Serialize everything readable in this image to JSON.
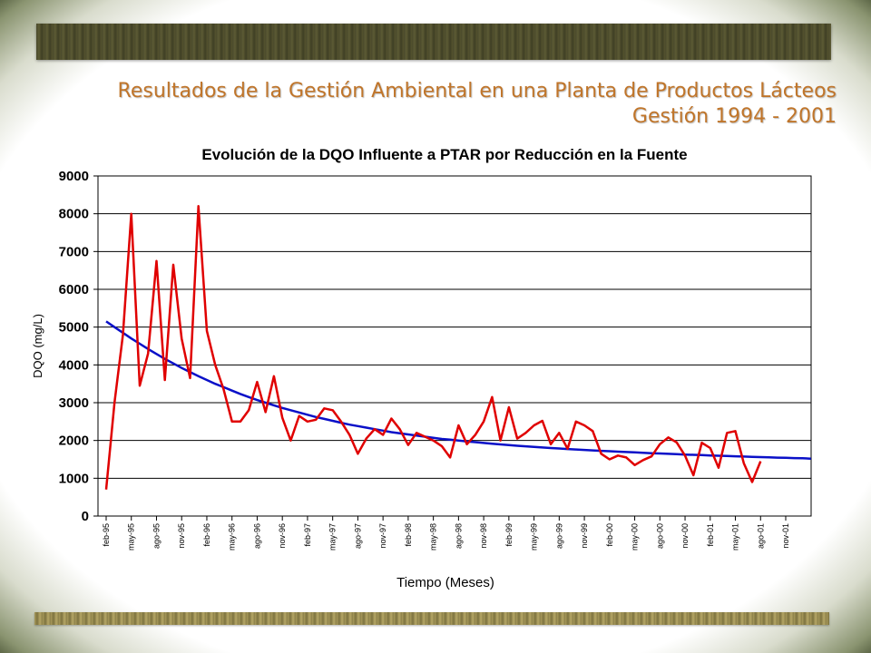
{
  "slide": {
    "header_line1": "Resultados de la Gestión Ambiental en una Planta de Productos Lácteos",
    "header_line2": "Gestión 1994 - 2001"
  },
  "colors": {
    "series": "#e00000",
    "trend": "#0a10c8",
    "header": "#c0752a"
  },
  "chart_data": {
    "type": "line",
    "title": "Evolución de la DQO Influente a PTAR por Reducción en la Fuente",
    "xlabel": "Tiempo (Meses)",
    "ylabel": "DQO (mg/L)",
    "ylim": [
      0,
      9000
    ],
    "yticks": [
      0,
      1000,
      2000,
      3000,
      4000,
      5000,
      6000,
      7000,
      8000,
      9000
    ],
    "grid": true,
    "xticks": [
      "feb-95",
      "may-95",
      "ago-95",
      "nov-95",
      "feb-96",
      "may-96",
      "ago-96",
      "nov-96",
      "feb-97",
      "may-97",
      "ago-97",
      "nov-97",
      "feb-98",
      "may-98",
      "ago-98",
      "nov-98",
      "feb-99",
      "may-99",
      "ago-99",
      "nov-99",
      "feb-00",
      "may-00",
      "ago-00",
      "nov-00",
      "feb-01",
      "may-01",
      "ago-01",
      "nov-01"
    ],
    "x_start": "feb-95",
    "series": [
      {
        "type": "line",
        "values": [
          700,
          3000,
          4800,
          8000,
          3450,
          4300,
          6750,
          3600,
          6650,
          4700,
          3650,
          8200,
          4900,
          4000,
          3350,
          2500,
          2500,
          2800,
          3550,
          2750,
          3700,
          2600,
          2000,
          2650,
          2500,
          2550,
          2850,
          2800,
          2500,
          2150,
          1650,
          2050,
          2300,
          2150,
          2580,
          2300,
          1880,
          2200,
          2100,
          2000,
          1850,
          1550,
          2400,
          1900,
          2150,
          2500,
          3150,
          2000,
          2880,
          2050,
          2200,
          2400,
          2520,
          1900,
          2200,
          1780,
          2500,
          2400,
          2250,
          1650,
          1500,
          1600,
          1550,
          1350,
          1480,
          1580,
          1900,
          2080,
          1950,
          1600,
          1080,
          1940,
          1800,
          1280,
          2200,
          2250,
          1400,
          900,
          1450
        ]
      },
      {
        "type": "trend",
        "values": [
          5150,
          5000,
          4850,
          4700,
          4560,
          4420,
          4290,
          4160,
          4040,
          3920,
          3810,
          3700,
          3600,
          3500,
          3410,
          3320,
          3230,
          3150,
          3070,
          3000,
          2930,
          2860,
          2800,
          2740,
          2680,
          2620,
          2570,
          2520,
          2470,
          2420,
          2380,
          2340,
          2300,
          2260,
          2220,
          2190,
          2160,
          2130,
          2100,
          2070,
          2040,
          2020,
          2000,
          1975,
          1955,
          1935,
          1915,
          1895,
          1878,
          1860,
          1845,
          1830,
          1815,
          1800,
          1787,
          1774,
          1762,
          1750,
          1738,
          1726,
          1715,
          1704,
          1694,
          1684,
          1674,
          1664,
          1655,
          1646,
          1637,
          1628,
          1620,
          1612,
          1604,
          1596,
          1588,
          1581,
          1574,
          1567,
          1560,
          1553,
          1546,
          1540,
          1534,
          1528,
          1520
        ]
      }
    ]
  }
}
